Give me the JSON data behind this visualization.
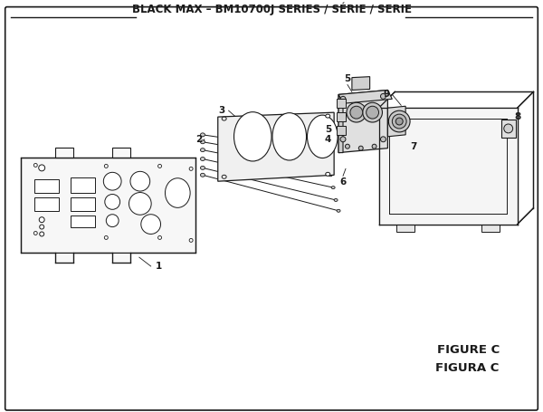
{
  "title": "BLACK MAX – BM10700J SERIES / SÉRIE / SERIE",
  "figure_label": "FIGURE C",
  "figura_label": "FIGURA C",
  "bg_color": "#ffffff",
  "line_color": "#1a1a1a",
  "title_fontsize": 8.5,
  "label_fontsize": 7.5
}
